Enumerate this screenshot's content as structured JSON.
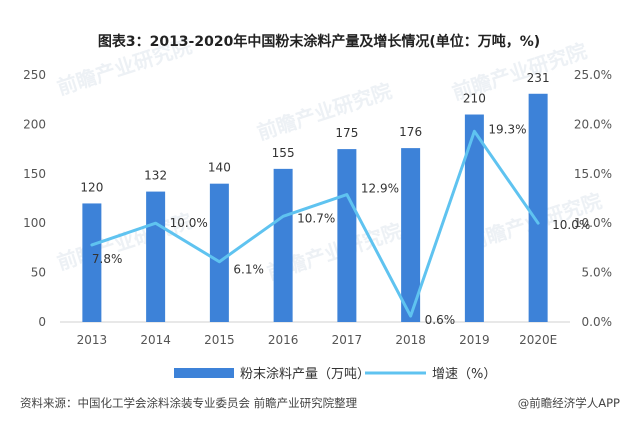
{
  "chart_data": {
    "type": "bar",
    "title": "图表3：2013-2020年中国粉末涂料产量及增长情况(单位：万吨，%)",
    "categories": [
      "2013",
      "2014",
      "2015",
      "2016",
      "2017",
      "2018",
      "2019",
      "2020E"
    ],
    "series": [
      {
        "name": "粉末涂料产量（万吨）",
        "type": "bar",
        "axis": "left",
        "color": "#3d82d8",
        "values": [
          120,
          132,
          140,
          155,
          175,
          176,
          210,
          231
        ],
        "labels": [
          "120",
          "132",
          "140",
          "155",
          "175",
          "176",
          "210",
          "231"
        ]
      },
      {
        "name": "增速（%）",
        "type": "line",
        "axis": "right",
        "color": "#5fc3f0",
        "values": [
          7.8,
          10.0,
          6.1,
          10.7,
          12.9,
          0.6,
          19.3,
          10.0
        ],
        "labels": [
          "7.8%",
          "10.0%",
          "6.1%",
          "10.7%",
          "12.9%",
          "0.6%",
          "19.3%",
          "10.0%"
        ]
      }
    ],
    "y_left": {
      "ylim": [
        0,
        250
      ],
      "ticks": [
        0,
        50,
        100,
        150,
        200,
        250
      ],
      "tick_labels": [
        "0",
        "50",
        "100",
        "150",
        "200",
        "250"
      ]
    },
    "y_right": {
      "ylim": [
        0,
        25
      ],
      "ticks": [
        0,
        5,
        10,
        15,
        20,
        25
      ],
      "tick_labels": [
        "0.0%",
        "5.0%",
        "10.0%",
        "15.0%",
        "20.0%",
        "25.0%"
      ]
    },
    "grid": false,
    "legend_position": "bottom"
  },
  "footer": {
    "source": "资料来源：中国化工学会涂料涂装专业委员会 前瞻产业研究院整理",
    "brand": "@前瞻经济学人APP"
  },
  "watermark": "前瞻产业研究院",
  "colors": {
    "bar": "#3d82d8",
    "line": "#5fc3f0",
    "title": "#222222"
  }
}
